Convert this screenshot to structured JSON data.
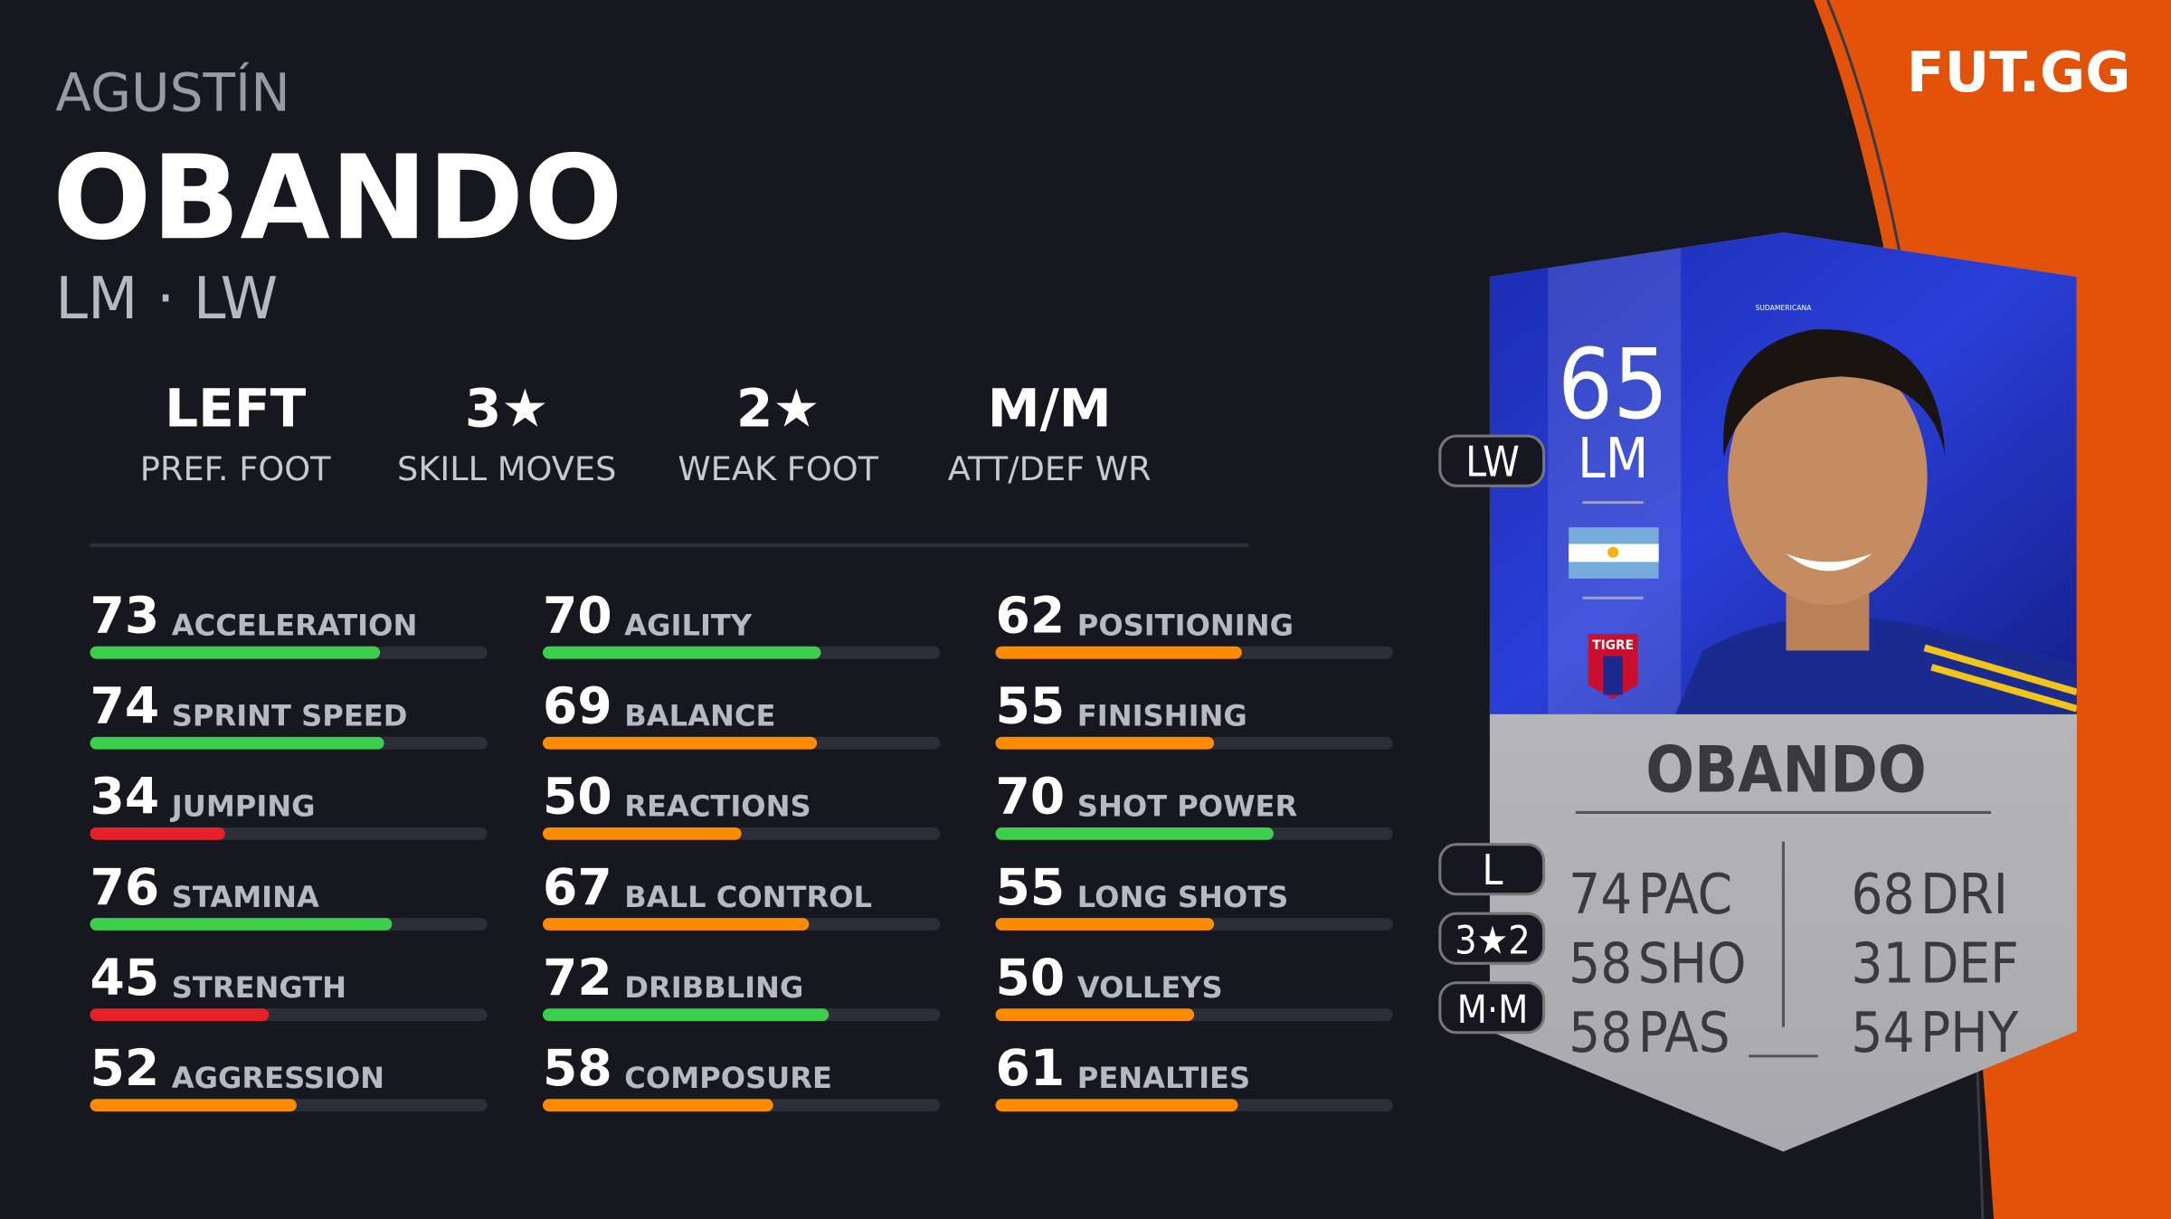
{
  "header": {
    "first_name": "AGUSTÍN",
    "last_name": "OBANDO",
    "positions": "LM · LW",
    "brand": "FUT.GG"
  },
  "info": [
    {
      "value": "LEFT",
      "label": "PREF. FOOT"
    },
    {
      "value": "3★",
      "label": "SKILL MOVES"
    },
    {
      "value": "2★",
      "label": "WEAK FOOT"
    },
    {
      "value": "M/M",
      "label": "ATT/DEF WR"
    }
  ],
  "stats": [
    [
      {
        "value": 73,
        "name": "ACCELERATION",
        "color": "#3ccf4e"
      },
      {
        "value": 74,
        "name": "SPRINT SPEED",
        "color": "#3ccf4e"
      },
      {
        "value": 34,
        "name": "JUMPING",
        "color": "#e8202a"
      },
      {
        "value": 76,
        "name": "STAMINA",
        "color": "#3ccf4e"
      },
      {
        "value": 45,
        "name": "STRENGTH",
        "color": "#e8202a"
      },
      {
        "value": 52,
        "name": "AGGRESSION",
        "color": "#ff8c00"
      }
    ],
    [
      {
        "value": 70,
        "name": "AGILITY",
        "color": "#3ccf4e"
      },
      {
        "value": 69,
        "name": "BALANCE",
        "color": "#ff8c00"
      },
      {
        "value": 50,
        "name": "REACTIONS",
        "color": "#ff8c00"
      },
      {
        "value": 67,
        "name": "BALL CONTROL",
        "color": "#ff8c00"
      },
      {
        "value": 72,
        "name": "DRIBBLING",
        "color": "#3ccf4e"
      },
      {
        "value": 58,
        "name": "COMPOSURE",
        "color": "#ff8c00"
      }
    ],
    [
      {
        "value": 62,
        "name": "POSITIONING",
        "color": "#ff8c00"
      },
      {
        "value": 55,
        "name": "FINISHING",
        "color": "#ff8c00"
      },
      {
        "value": 70,
        "name": "SHOT POWER",
        "color": "#3ccf4e"
      },
      {
        "value": 55,
        "name": "LONG SHOTS",
        "color": "#ff8c00"
      },
      {
        "value": 50,
        "name": "VOLLEYS",
        "color": "#ff8c00"
      },
      {
        "value": 61,
        "name": "PENALTIES",
        "color": "#ff8c00"
      }
    ]
  ],
  "card": {
    "league": "SUDAMERICANA",
    "rating": "65",
    "position": "LM",
    "alt_position": "LW",
    "club": "TIGRE",
    "name": "OBANDO",
    "foot": "L",
    "skill_weak": "3★2",
    "work_rates": "M·M",
    "stats": [
      {
        "value": "74",
        "label": "PAC"
      },
      {
        "value": "58",
        "label": "SHO"
      },
      {
        "value": "58",
        "label": "PAS"
      },
      {
        "value": "68",
        "label": "DRI"
      },
      {
        "value": "31",
        "label": "DEF"
      },
      {
        "value": "54",
        "label": "PHY"
      }
    ]
  }
}
